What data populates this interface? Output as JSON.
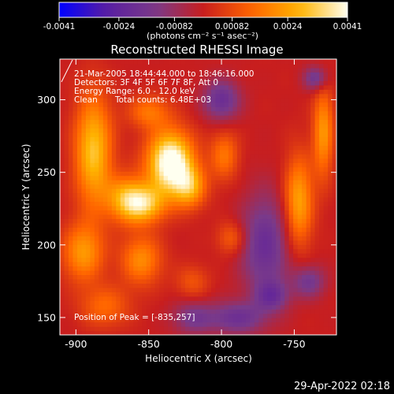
{
  "chart_data": {
    "type": "heatmap",
    "title": "Reconstructed RHESSI Image",
    "xlabel": "Heliocentric X (arcsec)",
    "ylabel": "Heliocentric Y (arcsec)",
    "xlim": [
      -911,
      -721
    ],
    "ylim": [
      138,
      328
    ],
    "x_ticks": [
      -900,
      -850,
      -800,
      -750
    ],
    "y_ticks": [
      150,
      200,
      250,
      300
    ],
    "colorbar": {
      "range": [
        -0.0041,
        0.0041
      ],
      "ticks": [
        -0.0041,
        -0.0024,
        -0.00082,
        0.00082,
        0.0024,
        0.0041
      ],
      "tick_labels": [
        "-0.0041",
        "-0.0024",
        "-0.00082",
        "0.00082",
        "0.0024",
        "0.0041"
      ],
      "units": "(photons cm⁻² s⁻¹ asec⁻²)",
      "colormap": [
        "#0000ff",
        "#5a1ea0",
        "#7a3a8a",
        "#c81e1e",
        "#ff6400",
        "#ffb400",
        "#fffff0"
      ]
    },
    "annotations": {
      "time_range": "21-Mar-2005 18:44:44.000 to 18:46:16.000",
      "detectors": "Detectors: 3F 4F 5F 6F 7F 8F, Att 0",
      "energy": "Energy Range: 6.0 - 12.0 keV",
      "method": "Clean",
      "counts": "Total counts: 6.48E+03",
      "peak": "Position of Peak = [-835,257]"
    },
    "peak_position": [
      -835,
      257
    ],
    "blobs": [
      {
        "x": -835,
        "y": 257,
        "sx": 11,
        "sy": 15,
        "amp": 0.0047
      },
      {
        "x": -822,
        "y": 240,
        "sx": 8,
        "sy": 10,
        "amp": 0.0023
      },
      {
        "x": -888,
        "y": 265,
        "sx": 9,
        "sy": 27,
        "amp": 0.003
      },
      {
        "x": -865,
        "y": 232,
        "sx": 10,
        "sy": 11,
        "amp": 0.0026
      },
      {
        "x": -852,
        "y": 228,
        "sx": 10,
        "sy": 9,
        "amp": 0.0025
      },
      {
        "x": -895,
        "y": 195,
        "sx": 10,
        "sy": 14,
        "amp": 0.0022
      },
      {
        "x": -855,
        "y": 190,
        "sx": 10,
        "sy": 12,
        "amp": 0.002
      },
      {
        "x": -880,
        "y": 158,
        "sx": 12,
        "sy": 10,
        "amp": 0.0014
      },
      {
        "x": -798,
        "y": 262,
        "sx": 7,
        "sy": 12,
        "amp": 0.0016
      },
      {
        "x": -747,
        "y": 230,
        "sx": 7,
        "sy": 22,
        "amp": 0.0025
      },
      {
        "x": -730,
        "y": 278,
        "sx": 5,
        "sy": 22,
        "amp": 0.0022
      },
      {
        "x": -850,
        "y": 292,
        "sx": 10,
        "sy": 8,
        "amp": 0.0016
      },
      {
        "x": -793,
        "y": 205,
        "sx": 7,
        "sy": 8,
        "amp": 0.0013
      },
      {
        "x": -820,
        "y": 175,
        "sx": 8,
        "sy": 8,
        "amp": 0.001
      },
      {
        "x": -800,
        "y": 300,
        "sx": 9,
        "sy": 10,
        "amp": -0.002
      },
      {
        "x": -770,
        "y": 200,
        "sx": 12,
        "sy": 25,
        "amp": -0.002
      },
      {
        "x": -740,
        "y": 175,
        "sx": 8,
        "sy": 8,
        "amp": -0.0016
      },
      {
        "x": -820,
        "y": 150,
        "sx": 10,
        "sy": 8,
        "amp": -0.0014
      },
      {
        "x": -790,
        "y": 150,
        "sx": 14,
        "sy": 8,
        "amp": -0.0018
      },
      {
        "x": -765,
        "y": 165,
        "sx": 8,
        "sy": 7,
        "amp": -0.0015
      },
      {
        "x": -735,
        "y": 315,
        "sx": 6,
        "sy": 6,
        "amp": -0.0018
      }
    ]
  },
  "footer": {
    "date": "29-Apr-2022 02:18"
  }
}
